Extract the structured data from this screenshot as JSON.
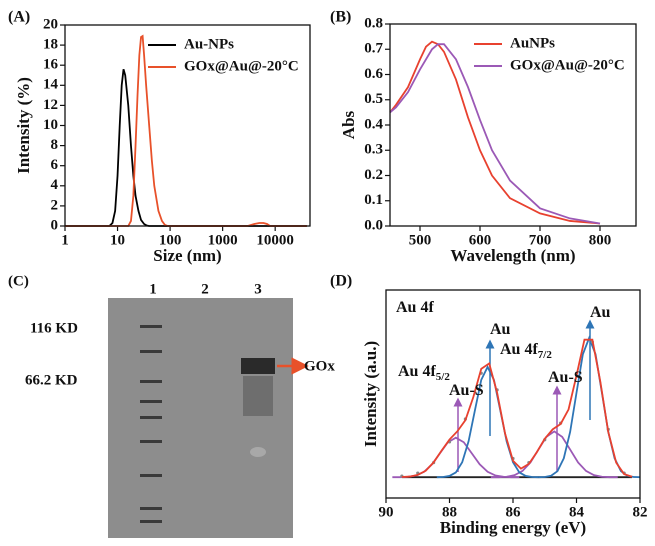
{
  "chart_data": [
    {
      "type": "line",
      "panel_label": "(A)",
      "xlabel": "Size (nm)",
      "ylabel": "Intensity (%)",
      "xscale": "log",
      "xlim": [
        1,
        46000
      ],
      "xticks": [
        1,
        10,
        100,
        1000,
        10000
      ],
      "ylim": [
        0,
        20
      ],
      "yticks": [
        0,
        2,
        4,
        6,
        8,
        10,
        12,
        14,
        16,
        18,
        20
      ],
      "legend": "upper right",
      "series": [
        {
          "name": "Au-NPs",
          "color": "#000000",
          "x": [
            1,
            7,
            8,
            9,
            10,
            11,
            12,
            13,
            14,
            16,
            18,
            20,
            22,
            25,
            28,
            32,
            36,
            40,
            40000
          ],
          "values": [
            0,
            0,
            0.3,
            1.5,
            5,
            10,
            14,
            15.6,
            15,
            12,
            8,
            5,
            3,
            1.5,
            0.6,
            0.2,
            0.05,
            0,
            0
          ]
        },
        {
          "name": "GOx@Au@-20°C",
          "color": "#e8512a",
          "x": [
            1,
            16,
            18,
            20,
            22,
            24,
            26,
            28,
            30,
            32,
            35,
            40,
            45,
            50,
            60,
            70,
            80,
            90,
            3000,
            4000,
            5000,
            6000,
            7000,
            8000,
            40000
          ],
          "values": [
            0,
            0,
            0.5,
            3,
            8,
            13,
            17,
            18.8,
            18.9,
            17,
            14,
            10,
            6.5,
            4,
            1.5,
            0.5,
            0.1,
            0,
            0,
            0.2,
            0.3,
            0.3,
            0.2,
            0,
            0
          ]
        }
      ]
    },
    {
      "type": "line",
      "panel_label": "(B)",
      "xlabel": "Wavelength (nm)",
      "ylabel": "Abs",
      "xlim": [
        450,
        860
      ],
      "xticks": [
        500,
        600,
        700,
        800
      ],
      "ylim": [
        0,
        0.8
      ],
      "yticks": [
        {
          "value": 0,
          "label": "0.0"
        },
        0.1,
        0.2,
        0.3,
        0.4,
        0.5,
        0.6,
        0.7,
        0.8
      ],
      "legend": "upper right",
      "series": [
        {
          "name": "AuNPs",
          "color": "#e8412f",
          "x": [
            450,
            460,
            480,
            500,
            510,
            520,
            530,
            540,
            560,
            580,
            600,
            620,
            650,
            700,
            750,
            800
          ],
          "values": [
            0.45,
            0.48,
            0.55,
            0.66,
            0.71,
            0.73,
            0.72,
            0.69,
            0.58,
            0.43,
            0.3,
            0.2,
            0.11,
            0.05,
            0.02,
            0.01
          ]
        },
        {
          "name": "GOx@Au@-20°C",
          "color": "#9b59b6",
          "x": [
            450,
            460,
            480,
            500,
            520,
            530,
            540,
            560,
            580,
            600,
            620,
            650,
            700,
            750,
            800
          ],
          "values": [
            0.45,
            0.47,
            0.53,
            0.62,
            0.7,
            0.72,
            0.72,
            0.66,
            0.55,
            0.42,
            0.3,
            0.18,
            0.07,
            0.03,
            0.01
          ]
        }
      ]
    },
    {
      "type": "line",
      "panel_label": "(D)",
      "xlabel": "Binding energy (eV)",
      "ylabel": "Intensity (a.u.)",
      "xlim": [
        90,
        82
      ],
      "xticks": [
        90,
        88,
        86,
        84,
        82
      ],
      "ylim": [
        0,
        1
      ],
      "series": [
        {
          "color": "#222222",
          "x": [
            89.5,
            82.25
          ],
          "values": [
            0.1,
            0.1
          ]
        },
        {
          "color": "#9b59b6",
          "x": [
            89.8,
            89.55,
            89.3,
            89.05,
            88.8,
            88.55,
            88.3,
            88.05,
            87.8,
            87.55,
            87.3,
            87.05,
            86.8,
            86.55,
            86.3,
            86.05,
            85.8
          ],
          "values": [
            0.1,
            0.1,
            0.102,
            0.108,
            0.126,
            0.162,
            0.215,
            0.268,
            0.29,
            0.268,
            0.215,
            0.162,
            0.126,
            0.108,
            0.102,
            0.1,
            0.1
          ]
        },
        {
          "color": "#9b59b6",
          "x": [
            86.7,
            86.45,
            86.2,
            85.95,
            85.7,
            85.45,
            85.2,
            84.95,
            84.7,
            84.45,
            84.2,
            83.95,
            83.7,
            83.45,
            83.2,
            82.95,
            82.7
          ],
          "values": [
            0.1,
            0.1,
            0.102,
            0.11,
            0.13,
            0.171,
            0.233,
            0.294,
            0.32,
            0.294,
            0.233,
            0.171,
            0.13,
            0.11,
            0.102,
            0.1,
            0.1
          ]
        },
        {
          "color": "#2e75b6",
          "x": [
            88.4,
            88.2,
            88.0,
            87.8,
            87.6,
            87.4,
            87.2,
            87.0,
            86.8,
            86.6,
            86.4,
            86.2,
            86.0,
            85.8,
            85.6,
            85.4,
            85.2
          ],
          "values": [
            0.1,
            0.101,
            0.106,
            0.123,
            0.172,
            0.272,
            0.421,
            0.568,
            0.63,
            0.568,
            0.421,
            0.272,
            0.172,
            0.123,
            0.106,
            0.101,
            0.1
          ]
        },
        {
          "color": "#2e75b6",
          "x": [
            85.2,
            85.0,
            84.8,
            84.6,
            84.4,
            84.2,
            84.0,
            83.8,
            83.6,
            83.4,
            83.2,
            83.0,
            82.8,
            82.6,
            82.4,
            82.2,
            82.0
          ],
          "values": [
            0.1,
            0.101,
            0.107,
            0.129,
            0.191,
            0.318,
            0.506,
            0.691,
            0.77,
            0.691,
            0.506,
            0.318,
            0.191,
            0.129,
            0.107,
            0.101,
            0.1
          ]
        },
        {
          "color": "#888888",
          "style": "markers",
          "x": [
            89.5,
            89,
            88.5,
            88,
            87.5,
            87,
            86.5,
            86,
            85.5,
            85,
            84.5,
            84,
            83.5,
            83,
            82.5
          ],
          "values": [
            0.105,
            0.12,
            0.17,
            0.27,
            0.38,
            0.6,
            0.52,
            0.19,
            0.17,
            0.28,
            0.36,
            0.6,
            0.75,
            0.33,
            0.12
          ]
        },
        {
          "color": "#e8412f",
          "x": [
            89.5,
            89.25,
            89.0,
            88.75,
            88.5,
            88.25,
            88.0,
            87.75,
            87.5,
            87.25,
            87.0,
            86.75,
            86.5,
            86.25,
            86.0,
            85.75,
            85.5,
            85.25,
            85.0,
            84.75,
            84.5,
            84.25,
            84.0,
            83.75,
            83.5,
            83.25,
            83.0,
            82.75,
            82.5,
            82.25
          ],
          "values": [
            0.101,
            0.103,
            0.111,
            0.131,
            0.171,
            0.228,
            0.281,
            0.321,
            0.374,
            0.485,
            0.621,
            0.647,
            0.506,
            0.31,
            0.179,
            0.141,
            0.164,
            0.22,
            0.285,
            0.33,
            0.356,
            0.426,
            0.589,
            0.761,
            0.761,
            0.56,
            0.318,
            0.17,
            0.115,
            0.102
          ]
        }
      ],
      "annotations": [
        {
          "text": "Au 4f"
        },
        {
          "text": "Au",
          "color": "#2e75b6"
        },
        {
          "text": "Au",
          "color": "#2e75b6"
        },
        {
          "text": "Au 4f",
          "sub": "7/2"
        },
        {
          "text": "Au 4f",
          "sub": "5/2"
        },
        {
          "text": "Au-S",
          "color": "#9b59b6"
        },
        {
          "text": "Au-S",
          "color": "#9b59b6"
        }
      ]
    }
  ],
  "gel": {
    "panel_label": "(C)",
    "lanes": [
      "1",
      "2",
      "3"
    ],
    "markers": [
      "116 KD",
      "66.2 KD"
    ],
    "band_label": "GOx"
  }
}
